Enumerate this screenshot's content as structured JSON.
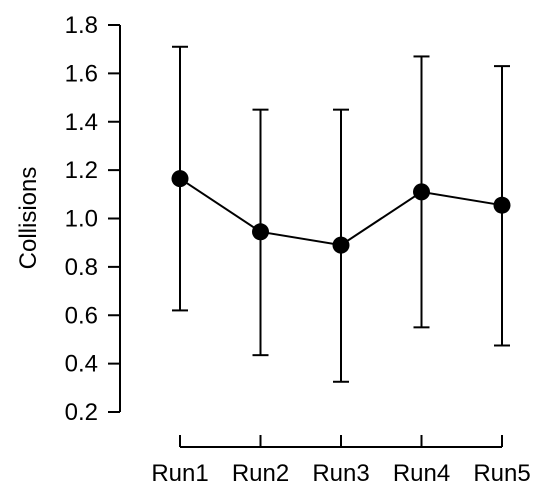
{
  "chart_data": {
    "type": "line",
    "title": "",
    "xlabel": "",
    "ylabel": "Collisions",
    "categories": [
      "Run1",
      "Run2",
      "Run3",
      "Run4",
      "Run5"
    ],
    "series": [
      {
        "values": [
          1.165,
          0.945,
          0.89,
          1.11,
          1.055
        ],
        "error_lower": [
          0.62,
          0.435,
          0.325,
          0.55,
          0.475
        ],
        "error_upper": [
          1.71,
          1.45,
          1.45,
          1.67,
          1.63
        ]
      }
    ],
    "ylim": [
      0.2,
      1.8
    ],
    "yticks": [
      "0.2",
      "0.4",
      "0.6",
      "0.8",
      "1.0",
      "1.2",
      "1.4",
      "1.6",
      "1.8"
    ],
    "grid": false,
    "legend": "none",
    "colors": {
      "line": "#000000",
      "marker": "#000000",
      "background": "#ffffff"
    }
  }
}
